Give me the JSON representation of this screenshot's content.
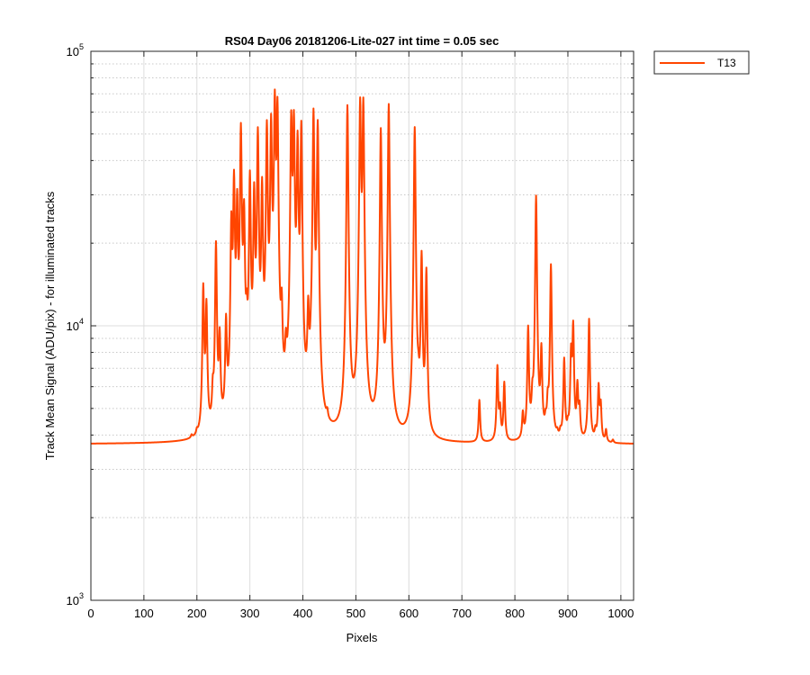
{
  "chart_data": {
    "type": "line",
    "title": "RS04 Day06 20181206-Lite-027 int time = 0.05 sec",
    "xlabel": "Pixels",
    "ylabel": "Track Mean Signal (ADU/pix) - for illuminated tracks",
    "xlim": [
      0,
      1024
    ],
    "ylim": [
      1000,
      100000
    ],
    "yscale": "log",
    "grid": true,
    "legend_placement": "outside-top-right",
    "xticks": [
      {
        "value": 0,
        "label": "0"
      },
      {
        "value": 100,
        "label": "100"
      },
      {
        "value": 200,
        "label": "200"
      },
      {
        "value": 300,
        "label": "300"
      },
      {
        "value": 400,
        "label": "400"
      },
      {
        "value": 500,
        "label": "500"
      },
      {
        "value": 600,
        "label": "600"
      },
      {
        "value": 700,
        "label": "700"
      },
      {
        "value": 800,
        "label": "800"
      },
      {
        "value": 900,
        "label": "900"
      },
      {
        "value": 1000,
        "label": "1000"
      }
    ],
    "yticks": [
      {
        "value": 1000,
        "base": "10",
        "exp": "3"
      },
      {
        "value": 10000,
        "base": "10",
        "exp": "4"
      },
      {
        "value": 100000,
        "base": "10",
        "exp": "5"
      }
    ],
    "series": [
      {
        "name": "T13",
        "color": "#ff4500",
        "baseline": 3700,
        "peaks": [
          [
            190,
            3800
          ],
          [
            200,
            3850
          ],
          [
            212,
            13500
          ],
          [
            218,
            11500
          ],
          [
            230,
            5000
          ],
          [
            236,
            19500
          ],
          [
            243,
            8400
          ],
          [
            255,
            9500
          ],
          [
            265,
            22000
          ],
          [
            270,
            32500
          ],
          [
            276,
            26000
          ],
          [
            283,
            51000
          ],
          [
            289,
            23500
          ],
          [
            294,
            7500
          ],
          [
            300,
            33500
          ],
          [
            308,
            28500
          ],
          [
            315,
            49000
          ],
          [
            323,
            30000
          ],
          [
            332,
            51500
          ],
          [
            340,
            52500
          ],
          [
            347,
            63500
          ],
          [
            352,
            60500
          ],
          [
            360,
            9000
          ],
          [
            368,
            6000
          ],
          [
            378,
            54500
          ],
          [
            383,
            53000
          ],
          [
            390,
            45000
          ],
          [
            397,
            52000
          ],
          [
            410,
            9500
          ],
          [
            415,
            4400
          ],
          [
            420,
            59000
          ],
          [
            428,
            53500
          ],
          [
            446,
            4000
          ],
          [
            484,
            63000
          ],
          [
            508,
            63500
          ],
          [
            514,
            63500
          ],
          [
            547,
            51500
          ],
          [
            562,
            63500
          ],
          [
            611,
            52500
          ],
          [
            618,
            4500
          ],
          [
            624,
            17500
          ],
          [
            633,
            15500
          ],
          [
            733,
            5300
          ],
          [
            767,
            7000
          ],
          [
            772,
            4800
          ],
          [
            780,
            6100
          ],
          [
            815,
            4600
          ],
          [
            825,
            9600
          ],
          [
            833,
            4800
          ],
          [
            840,
            29500
          ],
          [
            850,
            7800
          ],
          [
            858,
            4100
          ],
          [
            862,
            4800
          ],
          [
            868,
            16500
          ],
          [
            880,
            3850
          ],
          [
            886,
            3900
          ],
          [
            893,
            7400
          ],
          [
            900,
            4000
          ],
          [
            906,
            7600
          ],
          [
            910,
            9700
          ],
          [
            918,
            5800
          ],
          [
            922,
            4800
          ],
          [
            940,
            10500
          ],
          [
            952,
            4000
          ],
          [
            958,
            5900
          ],
          [
            962,
            5000
          ],
          [
            972,
            4100
          ],
          [
            985,
            3800
          ]
        ]
      }
    ]
  }
}
